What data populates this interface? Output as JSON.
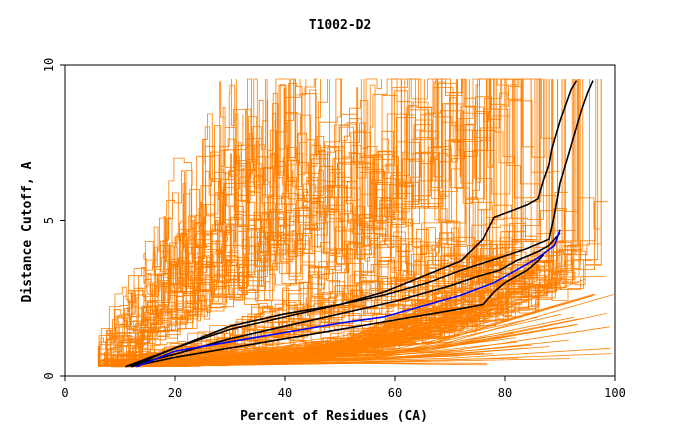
{
  "chart_data": {
    "type": "line",
    "title": "T1002-D2",
    "xlabel": "Percent of Residues (CA)",
    "ylabel": "Distance Cutoff, A",
    "xlim": [
      0,
      100
    ],
    "ylim": [
      0,
      10
    ],
    "x_ticks": [
      "0",
      "20",
      "40",
      "60",
      "80",
      "100"
    ],
    "y_ticks": [
      "0",
      "5",
      "10"
    ],
    "grid": false,
    "legend": "none",
    "colors": {
      "background_models": "#ff7f00",
      "highlight_black": "#000000",
      "highlight_blue": "#0000ff",
      "axis": "#000000"
    },
    "series": [
      {
        "name": "highlight-black-1",
        "color": "#000000",
        "x": [
          11,
          20,
          30,
          40,
          50,
          58,
          65,
          72,
          76,
          78,
          81,
          84,
          86,
          87,
          88,
          88.5,
          89,
          90,
          91,
          92,
          93
        ],
        "y": [
          0.3,
          0.9,
          1.5,
          1.9,
          2.3,
          2.7,
          3.2,
          3.7,
          4.4,
          5.1,
          5.3,
          5.5,
          5.7,
          6.3,
          6.8,
          7.3,
          7.6,
          8.2,
          8.7,
          9.2,
          9.5
        ]
      },
      {
        "name": "highlight-black-2",
        "color": "#000000",
        "x": [
          12,
          20,
          30,
          40,
          50,
          58,
          66,
          72,
          79,
          84,
          88,
          89,
          90,
          91.5,
          93,
          94,
          95,
          96
        ],
        "y": [
          0.3,
          0.9,
          1.6,
          2.0,
          2.3,
          2.6,
          3.0,
          3.4,
          3.8,
          4.1,
          4.4,
          5.2,
          6.2,
          7.1,
          8.0,
          8.6,
          9.1,
          9.5
        ]
      },
      {
        "name": "highlight-black-3",
        "color": "#000000",
        "x": [
          11,
          20,
          30,
          40,
          50,
          60,
          70,
          75,
          79,
          82,
          86,
          88,
          89,
          90
        ],
        "y": [
          0.3,
          0.7,
          1.2,
          1.6,
          2.0,
          2.4,
          2.9,
          3.2,
          3.4,
          3.7,
          4.0,
          4.2,
          4.4,
          4.6
        ]
      },
      {
        "name": "highlight-black-4",
        "color": "#000000",
        "x": [
          12,
          20,
          30,
          40,
          50,
          60,
          70,
          76,
          78,
          80,
          82,
          84,
          86,
          87
        ],
        "y": [
          0.3,
          0.6,
          0.9,
          1.2,
          1.5,
          1.8,
          2.1,
          2.3,
          2.7,
          3.0,
          3.2,
          3.4,
          3.7,
          3.9
        ]
      },
      {
        "name": "highlight-blue",
        "color": "#0000ff",
        "x": [
          13,
          20,
          30,
          40,
          50,
          58,
          66,
          72,
          78,
          82,
          86,
          89,
          90
        ],
        "y": [
          0.3,
          0.8,
          1.1,
          1.4,
          1.7,
          1.9,
          2.3,
          2.6,
          3.0,
          3.4,
          3.8,
          4.2,
          4.7
        ]
      }
    ]
  }
}
